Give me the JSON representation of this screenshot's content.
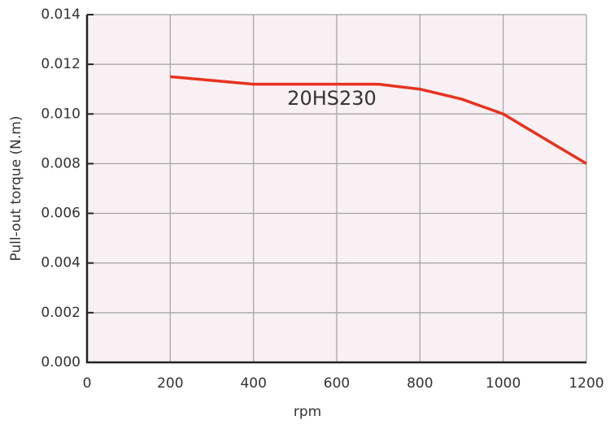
{
  "chart_data": {
    "type": "line",
    "x_label": "rpm",
    "y_label": "Pull-out torque  (N.m)",
    "annotation": "20HS230",
    "x": [
      200,
      300,
      400,
      500,
      600,
      700,
      800,
      900,
      1000,
      1100,
      1200
    ],
    "series": [
      {
        "name": "20HS230",
        "color": "#e8321e",
        "values": [
          0.0115,
          0.01135,
          0.0112,
          0.0112,
          0.0112,
          0.0112,
          0.011,
          0.0106,
          0.01,
          0.009,
          0.008
        ]
      }
    ],
    "xlim": [
      0,
      1200
    ],
    "xticks": [
      0,
      200,
      400,
      600,
      800,
      1000,
      1200
    ],
    "ylim": [
      0,
      0.014
    ],
    "yticks": [
      {
        "value": 0,
        "label": "0.000"
      },
      0.002,
      0.004,
      0.006,
      0.008,
      {
        "value": 0.01,
        "label": "0.010"
      },
      0.012,
      0.014
    ],
    "grid": true
  }
}
